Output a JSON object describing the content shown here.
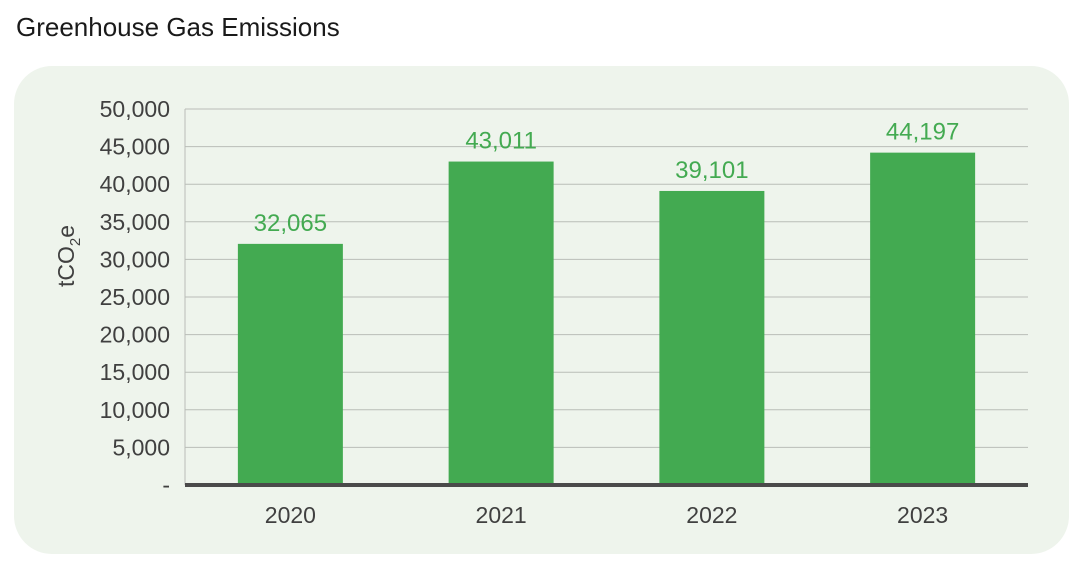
{
  "page": {
    "title": "Greenhouse Gas Emissions"
  },
  "colors": {
    "bar": "#43aa51",
    "label": "#43aa51",
    "grid": "#b9bdb7",
    "baseline": "#4a4a4a",
    "panel": "#eef4ec"
  },
  "chart_data": {
    "type": "bar",
    "title": "Greenhouse Gas Emissions",
    "ylabel_main": "tCO",
    "ylabel_sub": "2",
    "ylabel_end": "e",
    "xlabel": "",
    "categories": [
      "2020",
      "2021",
      "2022",
      "2023"
    ],
    "values": [
      32065,
      43011,
      39101,
      44197
    ],
    "value_labels": [
      "32,065",
      "43,011",
      "39,101",
      "44,197"
    ],
    "ylim": [
      0,
      50000
    ],
    "yticks": [
      0,
      5000,
      10000,
      15000,
      20000,
      25000,
      30000,
      35000,
      40000,
      45000,
      50000
    ],
    "ytick_labels": [
      "-",
      "5,000",
      "10,000",
      "15,000",
      "20,000",
      "25,000",
      "30,000",
      "35,000",
      "40,000",
      "45,000",
      "50,000"
    ],
    "grid": true,
    "legend": "none"
  }
}
